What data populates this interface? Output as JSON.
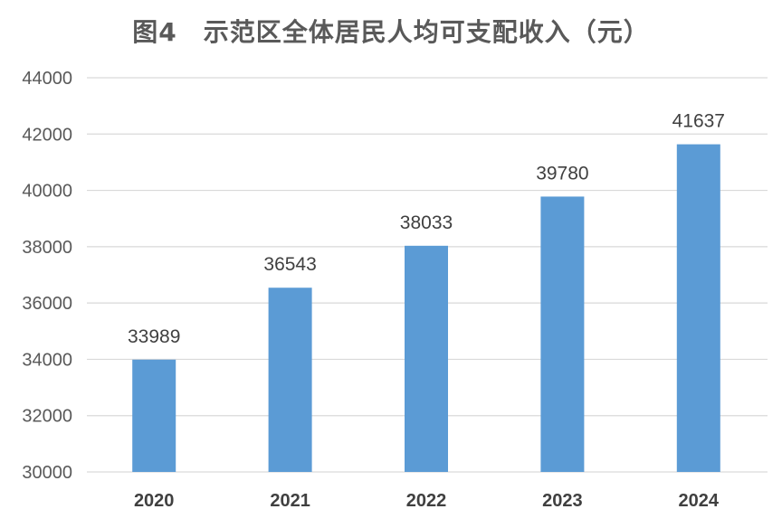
{
  "chart_data": {
    "type": "bar",
    "title": "图4　示范区全体居民人均可支配收入（元）",
    "categories": [
      "2020",
      "2021",
      "2022",
      "2023",
      "2024"
    ],
    "values": [
      33989,
      36543,
      38033,
      39780,
      41637
    ],
    "ylim": [
      30000,
      44000
    ],
    "yticks": [
      30000,
      32000,
      34000,
      36000,
      38000,
      40000,
      42000,
      44000
    ],
    "xlabel": "",
    "ylabel": "",
    "grid": true,
    "legend": "none",
    "bar_color": "#5B9BD5",
    "grid_color": "#D9D9D9"
  }
}
